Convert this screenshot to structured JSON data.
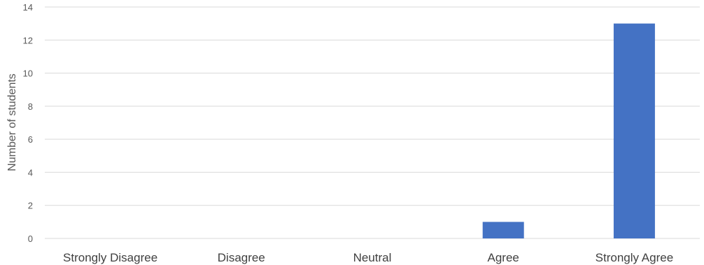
{
  "chart_data": {
    "type": "bar",
    "categories": [
      "Strongly Disagree",
      "Disagree",
      "Neutral",
      "Agree",
      "Strongly Agree"
    ],
    "values": [
      0,
      0,
      0,
      1,
      13
    ],
    "title": "",
    "xlabel": "",
    "ylabel": "Number of students",
    "ylim": [
      0,
      14
    ],
    "yticks": [
      0,
      2,
      4,
      6,
      8,
      10,
      12,
      14
    ],
    "grid": true,
    "legend": "none",
    "colors": {
      "bar": "#4472C4",
      "grid": "#D9D9D9",
      "axis_text": "#595959"
    }
  }
}
